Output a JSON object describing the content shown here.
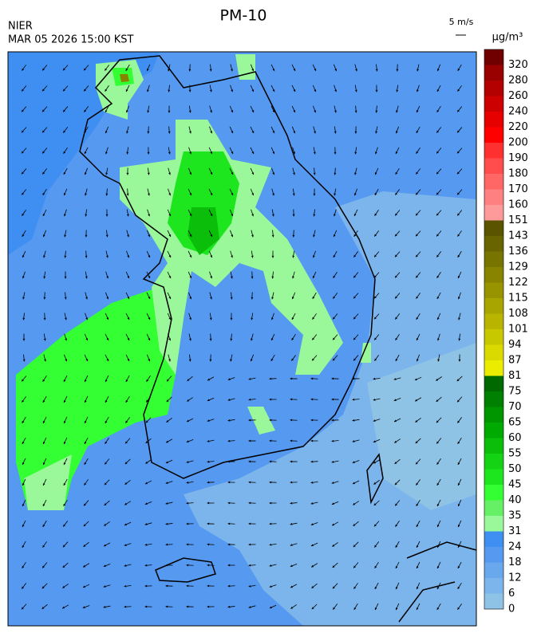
{
  "header": {
    "title": "PM-10",
    "agency": "NIER",
    "timestamp": "MAR 05 2026 15:00 KST",
    "wind_scale": "5 m/s"
  },
  "colorbar": {
    "unit": "µg/m³",
    "labels": [
      0,
      6,
      12,
      18,
      24,
      31,
      35,
      40,
      45,
      50,
      55,
      60,
      65,
      70,
      75,
      81,
      87,
      94,
      101,
      108,
      115,
      122,
      129,
      136,
      143,
      151,
      160,
      170,
      180,
      190,
      200,
      220,
      240,
      260,
      280,
      320
    ],
    "colors": [
      "#8ec3e6",
      "#7bb5ec",
      "#6aa8ee",
      "#5599f0",
      "#3f8ff2",
      "#9af79a",
      "#66f066",
      "#33ff33",
      "#1ee61e",
      "#14d214",
      "#0abe0a",
      "#00aa00",
      "#009600",
      "#008000",
      "#006a00",
      "#ecec00",
      "#dada00",
      "#c8c800",
      "#b8b400",
      "#a8a400",
      "#989400",
      "#888400",
      "#787400",
      "#686400",
      "#5a5400",
      "#ff9a9a",
      "#ff8080",
      "#ff6666",
      "#ff4c4c",
      "#ff3030",
      "#ff0000",
      "#e60000",
      "#cc0000",
      "#b30000",
      "#990000",
      "#700000"
    ]
  }
}
